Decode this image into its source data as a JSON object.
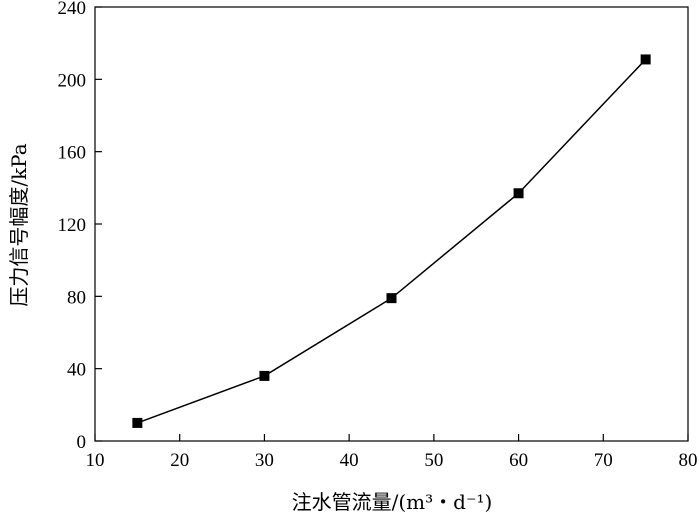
{
  "chart_data": {
    "type": "line",
    "title": "",
    "xlabel": "注水管流量/(m³・d⁻¹)",
    "ylabel": "压力信号幅度/kPa",
    "xlim": [
      10,
      80
    ],
    "ylim": [
      0,
      240
    ],
    "xticks": [
      10,
      20,
      30,
      40,
      50,
      60,
      70,
      80
    ],
    "yticks": [
      0,
      40,
      80,
      120,
      160,
      200,
      240
    ],
    "grid": false,
    "legend": "none",
    "series": [
      {
        "marker": "square",
        "color": "#000000",
        "x": [
          15,
          30,
          45,
          60,
          75
        ],
        "y": [
          10,
          36,
          79,
          137,
          211
        ]
      }
    ]
  }
}
